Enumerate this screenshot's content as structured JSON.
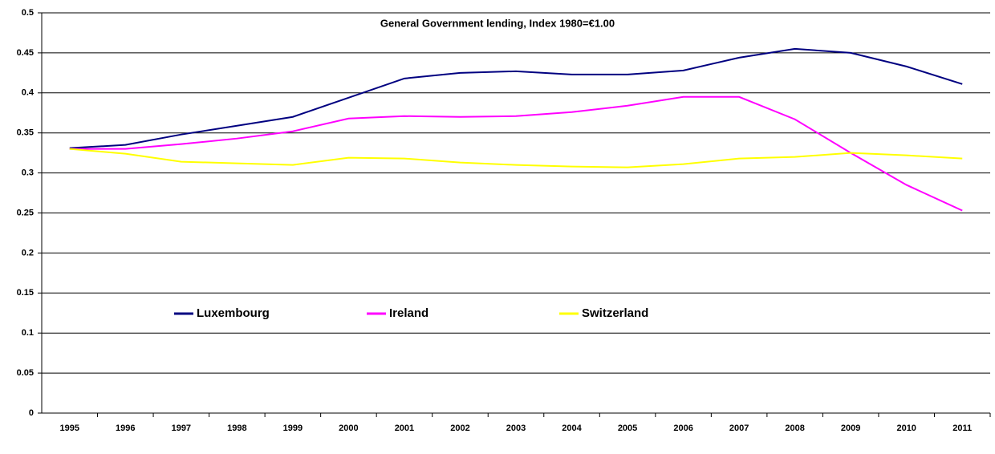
{
  "chart_data": {
    "type": "line",
    "title": "General Government lending, Index 1980=€1.00",
    "categories": [
      "1995",
      "1996",
      "1997",
      "1998",
      "1999",
      "2000",
      "2001",
      "2002",
      "2003",
      "2004",
      "2005",
      "2006",
      "2007",
      "2008",
      "2009",
      "2010",
      "2011"
    ],
    "series": [
      {
        "name": "Luxembourg",
        "color": "#000080",
        "values": [
          0.331,
          0.335,
          0.348,
          0.359,
          0.37,
          0.394,
          0.418,
          0.425,
          0.427,
          0.423,
          0.423,
          0.428,
          0.444,
          0.455,
          0.45,
          0.433,
          0.411
        ]
      },
      {
        "name": "Ireland",
        "color": "#ff00ff",
        "values": [
          0.33,
          0.33,
          0.336,
          0.343,
          0.352,
          0.368,
          0.371,
          0.37,
          0.371,
          0.376,
          0.384,
          0.395,
          0.395,
          0.367,
          0.325,
          0.285,
          0.253
        ]
      },
      {
        "name": "Switzerland",
        "color": "#ffff00",
        "values": [
          0.33,
          0.324,
          0.314,
          0.312,
          0.31,
          0.319,
          0.318,
          0.313,
          0.31,
          0.308,
          0.307,
          0.311,
          0.318,
          0.32,
          0.325,
          0.322,
          0.318
        ]
      }
    ],
    "ylim": [
      0,
      0.5
    ],
    "yticks": [
      0,
      0.05,
      0.1,
      0.15,
      0.2,
      0.25,
      0.3,
      0.35,
      0.4,
      0.45,
      0.5
    ],
    "grid": true,
    "legend": true
  }
}
